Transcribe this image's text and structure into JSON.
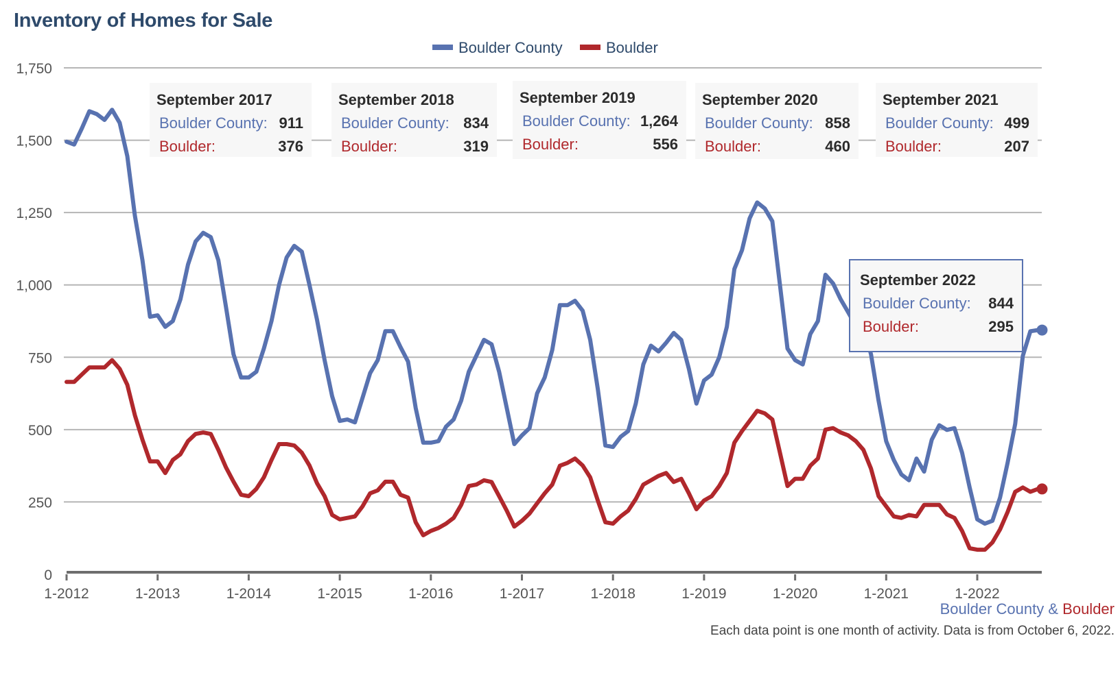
{
  "chart_data": {
    "type": "line",
    "title": "Inventory of Homes for Sale",
    "xlabel": "",
    "ylabel": "",
    "ylim": [
      0,
      1750
    ],
    "yticks": [
      0,
      250,
      500,
      750,
      1000,
      1250,
      1500,
      1750
    ],
    "ytick_labels": [
      "0",
      "250",
      "500",
      "750",
      "1,000",
      "1,250",
      "1,500",
      "1,750"
    ],
    "xtick_labels": [
      "1-2012",
      "1-2013",
      "1-2014",
      "1-2015",
      "1-2016",
      "1-2017",
      "1-2018",
      "1-2019",
      "1-2020",
      "1-2021",
      "1-2022"
    ],
    "x_start": "1-2012",
    "x_end": "9-2022",
    "grid": true,
    "legend_position": "top-center",
    "series": [
      {
        "name": "Boulder County",
        "color": "#5872b0",
        "values": [
          1495,
          1485,
          1540,
          1600,
          1590,
          1570,
          1605,
          1560,
          1445,
          1240,
          1085,
          890,
          895,
          855,
          875,
          950,
          1070,
          1150,
          1180,
          1165,
          1085,
          925,
          760,
          680,
          680,
          700,
          780,
          875,
          1000,
          1095,
          1135,
          1115,
          1000,
          880,
          740,
          615,
          530,
          535,
          525,
          610,
          695,
          740,
          840,
          840,
          785,
          735,
          575,
          455,
          455,
          460,
          510,
          535,
          600,
          700,
          755,
          810,
          795,
          700,
          575,
          450,
          480,
          505,
          625,
          680,
          775,
          930,
          930,
          945,
          911,
          810,
          640,
          445,
          440,
          475,
          495,
          590,
          725,
          790,
          770,
          800,
          834,
          810,
          710,
          590,
          670,
          690,
          750,
          855,
          1055,
          1120,
          1230,
          1285,
          1264,
          1220,
          1000,
          780,
          740,
          725,
          830,
          875,
          1035,
          1005,
          950,
          905,
          858,
          860,
          760,
          600,
          460,
          395,
          345,
          325,
          400,
          355,
          465,
          515,
          499,
          505,
          420,
          300,
          190,
          175,
          185,
          265,
          385,
          520,
          755,
          840,
          844
        ]
      },
      {
        "name": "Boulder",
        "color": "#b0282c",
        "values": [
          665,
          665,
          690,
          715,
          715,
          715,
          740,
          710,
          655,
          550,
          465,
          390,
          390,
          350,
          395,
          415,
          460,
          485,
          490,
          485,
          430,
          370,
          320,
          275,
          270,
          295,
          335,
          395,
          450,
          450,
          445,
          420,
          376,
          315,
          270,
          205,
          190,
          195,
          200,
          235,
          280,
          290,
          320,
          320,
          275,
          265,
          180,
          135,
          150,
          160,
          175,
          195,
          240,
          305,
          310,
          325,
          319,
          270,
          220,
          165,
          185,
          210,
          245,
          280,
          310,
          375,
          385,
          400,
          376,
          335,
          255,
          180,
          175,
          200,
          220,
          260,
          310,
          325,
          340,
          350,
          319,
          330,
          280,
          225,
          255,
          270,
          305,
          350,
          455,
          495,
          530,
          565,
          556,
          535,
          420,
          305,
          330,
          330,
          375,
          400,
          500,
          505,
          490,
          480,
          460,
          430,
          365,
          270,
          235,
          200,
          195,
          205,
          200,
          240,
          240,
          240,
          207,
          195,
          150,
          90,
          85,
          85,
          110,
          155,
          215,
          285,
          300,
          285,
          295
        ]
      }
    ],
    "tooltips": [
      {
        "title": "September 2017",
        "county": "911",
        "city": "376"
      },
      {
        "title": "September 2018",
        "county": "834",
        "city": "319"
      },
      {
        "title": "September 2019",
        "county": "1,264",
        "city": "556"
      },
      {
        "title": "September 2020",
        "county": "858",
        "city": "460"
      },
      {
        "title": "September 2021",
        "county": "499",
        "city": "207"
      },
      {
        "title": "September 2022",
        "county": "844",
        "city": "295"
      }
    ]
  },
  "labels": {
    "county_label": "Boulder County:",
    "city_label": "Boulder:",
    "legend_county": "Boulder County",
    "legend_city": "Boulder",
    "footer_county": "Boulder County",
    "footer_amp": " & ",
    "footer_city": "Boulder",
    "footer_note": "Each data point is one month of activity. Data is from October 6, 2022."
  }
}
